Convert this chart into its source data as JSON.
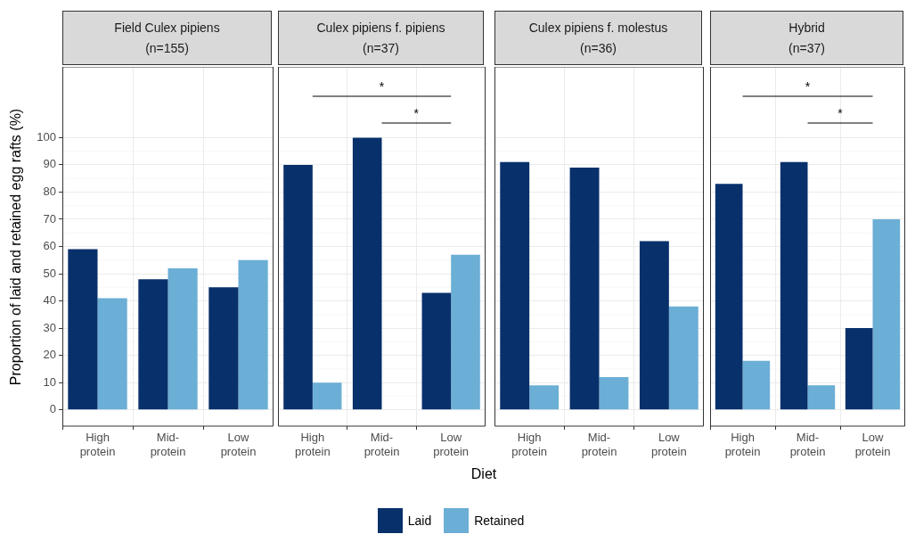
{
  "chart_data": [
    {
      "type": "bar",
      "title": "Field Culex pipiens",
      "subtitle": "(n=155)",
      "ylabel": "Proportion of laid and retained egg rafts (%)",
      "legend": "bottom",
      "categories": [
        "High protein",
        "Mid-protein",
        "Low protein"
      ],
      "series": [
        {
          "name": "Laid",
          "color": "#08306b",
          "values": [
            59,
            48,
            45
          ]
        },
        {
          "name": "Retained",
          "color": "#6baed6",
          "values": [
            41,
            52,
            55
          ]
        }
      ],
      "ylim": [
        -6,
        126
      ],
      "yticks": [
        0,
        10,
        20,
        30,
        40,
        50,
        60,
        70,
        80,
        90,
        100
      ],
      "grid": true
    },
    {
      "type": "bar",
      "title": "Culex pipiens f. pipiens",
      "subtitle": "(n=37)",
      "xlabel": "Diet",
      "categories": [
        "High protein",
        "Mid-protein",
        "Low protein"
      ],
      "series": [
        {
          "color": "#08306b",
          "values": [
            90,
            100,
            43
          ]
        },
        {
          "color": "#6baed6",
          "values": [
            10,
            0,
            57
          ]
        }
      ],
      "ylim": [
        -6,
        126
      ],
      "yticks": [
        0,
        10,
        20,
        30,
        40,
        50,
        60,
        70,
        80,
        90,
        100
      ],
      "grid": true,
      "tick_labels": "x",
      "annotations": [
        "*",
        "*"
      ]
    },
    {
      "type": "bar",
      "title": "Culex pipiens f. molestus",
      "subtitle": "(n=36)",
      "categories": [
        "High protein",
        "Mid-protein",
        "Low protein"
      ],
      "series": [
        {
          "color": "#08306b",
          "values": [
            91,
            89,
            62
          ]
        },
        {
          "color": "#6baed6",
          "values": [
            9,
            12,
            38
          ]
        }
      ],
      "ylim": [
        -6,
        126
      ],
      "yticks": [
        0,
        10,
        20,
        30,
        40,
        50,
        60,
        70,
        80,
        90,
        100
      ],
      "grid": true,
      "tick_labels": "x"
    },
    {
      "type": "bar",
      "title": "Hybrid",
      "subtitle": "(n=37)",
      "categories": [
        "High protein",
        "Mid-protein",
        "Low protein"
      ],
      "series": [
        {
          "color": "#08306b",
          "values": [
            83,
            91,
            30
          ]
        },
        {
          "color": "#6baed6",
          "values": [
            18,
            9,
            70
          ]
        }
      ],
      "ylim": [
        -6,
        126
      ],
      "yticks": [
        0,
        10,
        20,
        30,
        40,
        50,
        60,
        70,
        80,
        90,
        100
      ],
      "grid": true,
      "tick_labels": "x",
      "annotations": [
        "*",
        "*"
      ]
    }
  ]
}
